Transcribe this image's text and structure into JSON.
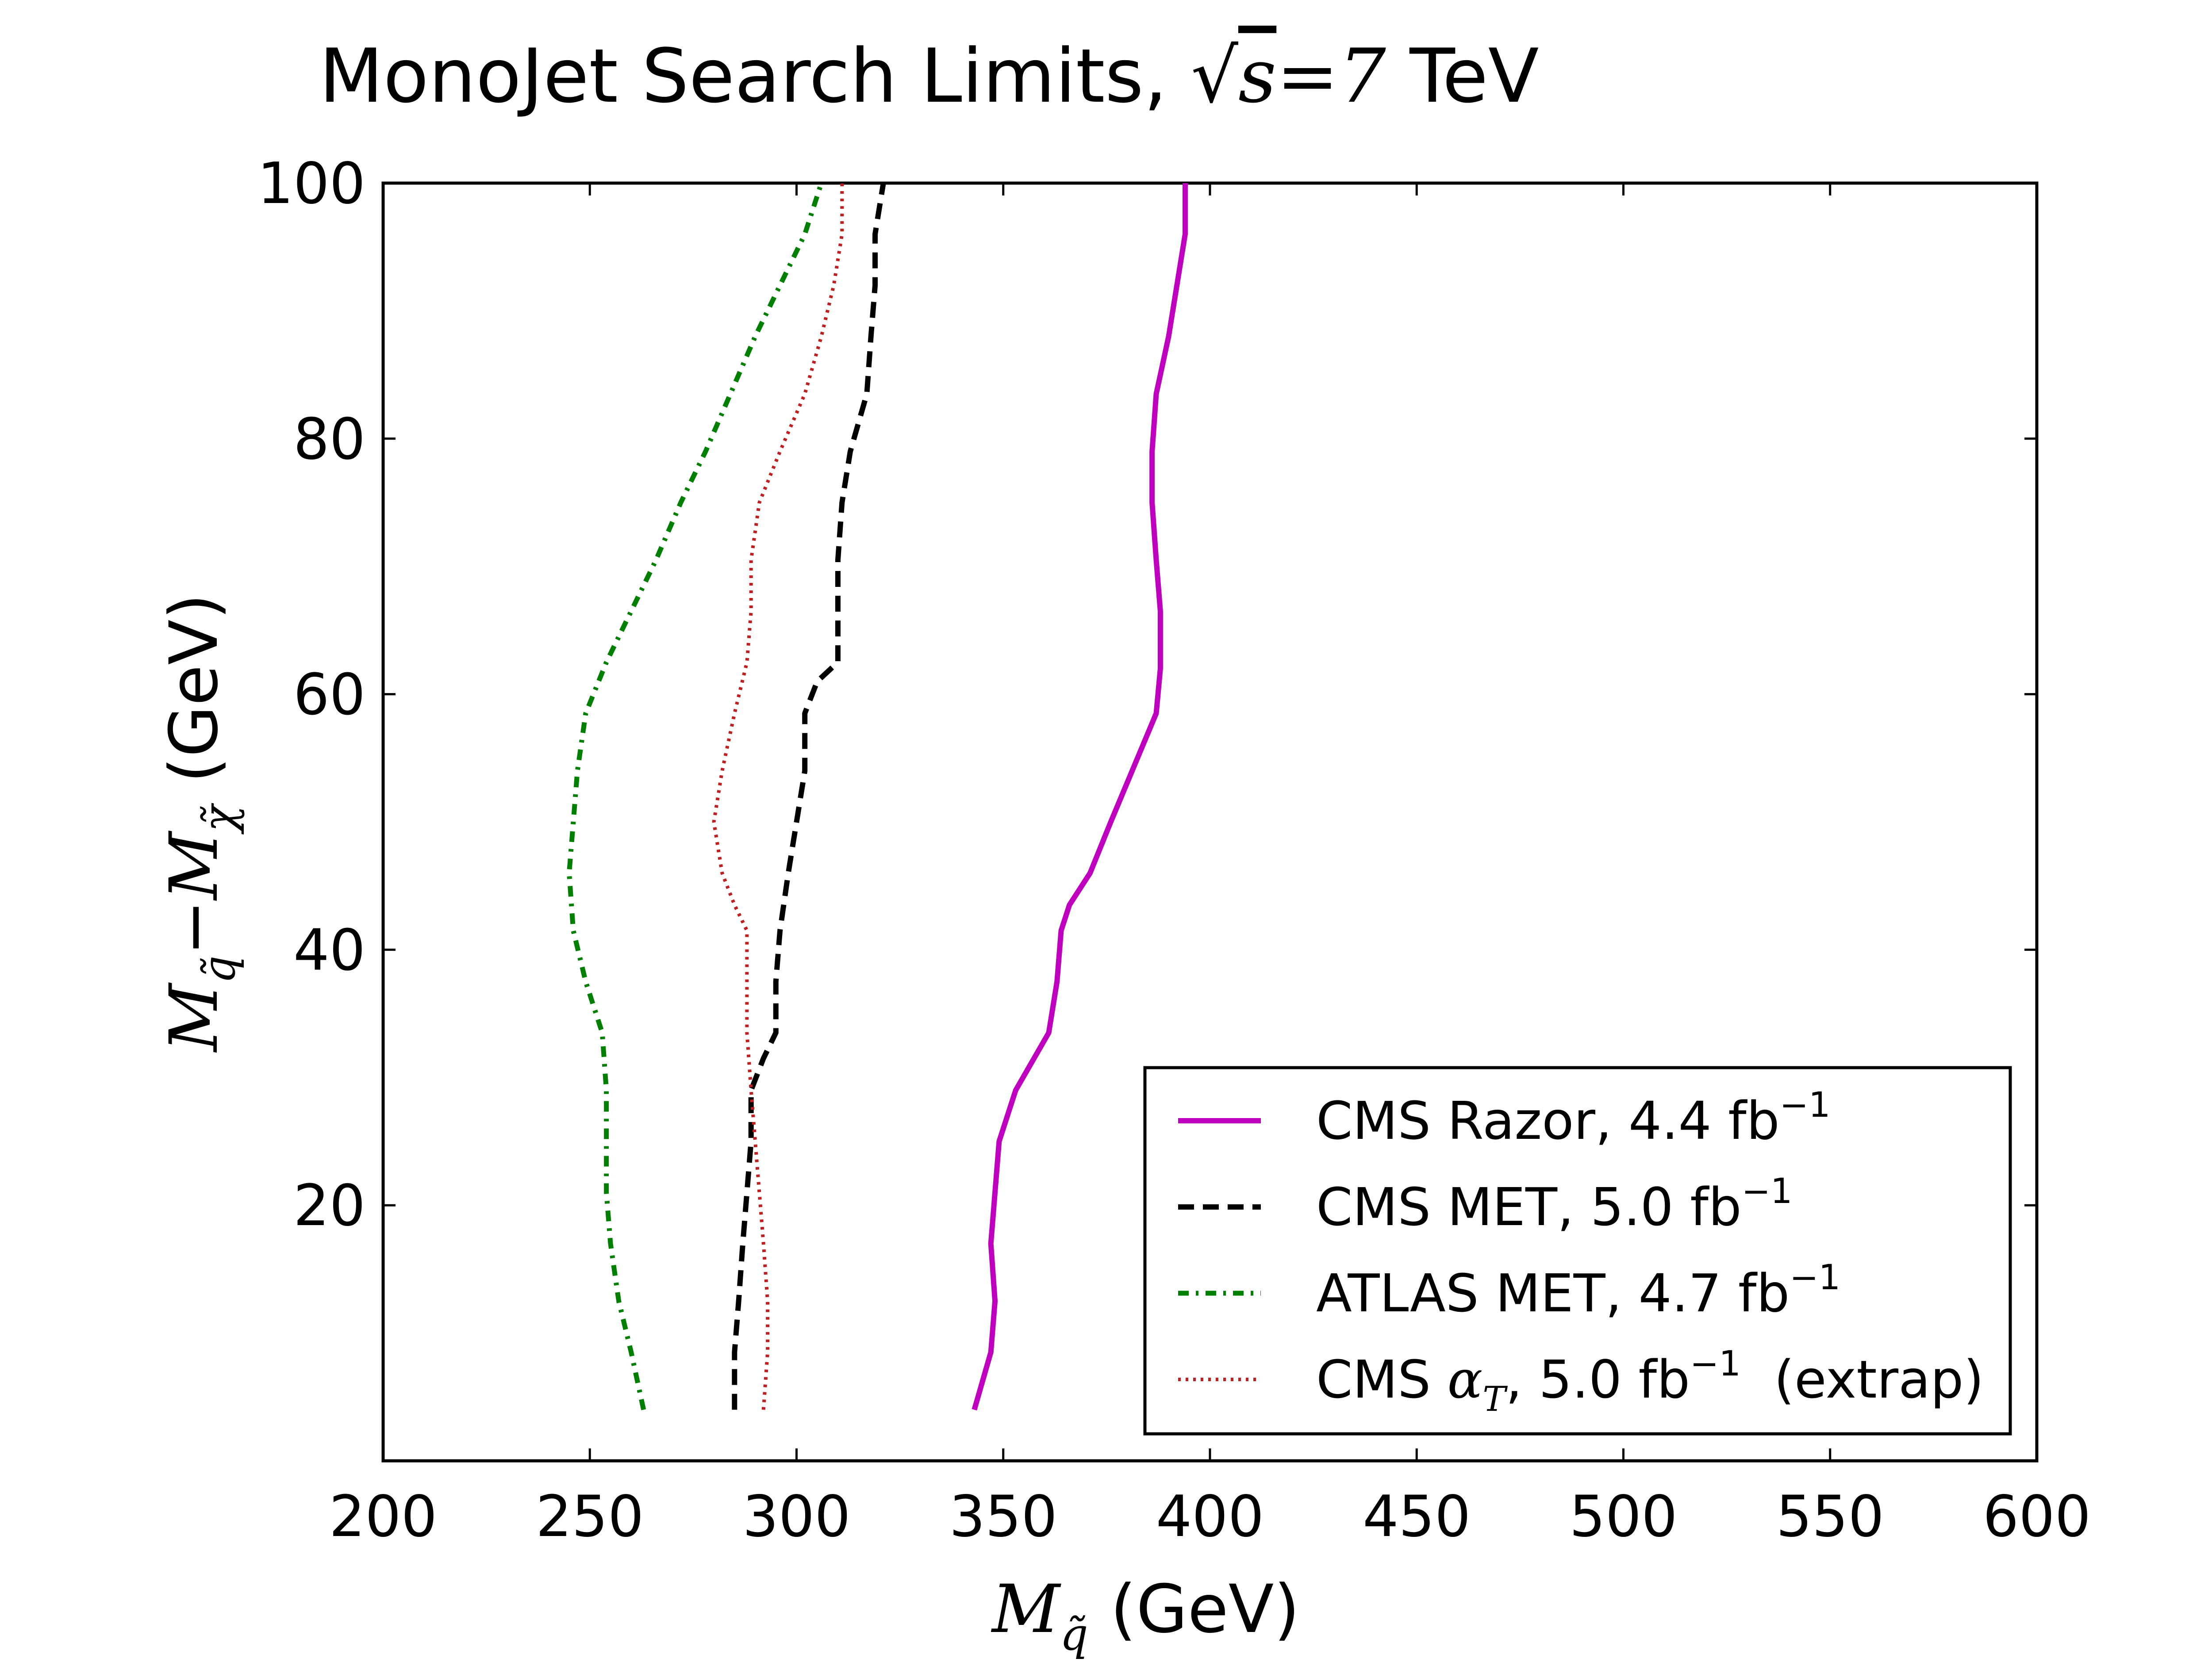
{
  "chart_data": {
    "type": "line",
    "title": {
      "prefix": "MonoJet Search Limits, ",
      "sqrt_symbol": "√",
      "sqrt_arg": "s",
      "equals": "=",
      "value": "7",
      "unit": " TeV"
    },
    "xlabel": {
      "symbol": "M",
      "subscript": "q̃",
      "unit": "(GeV)"
    },
    "ylabel": {
      "symbol1": "M",
      "subscript1": "q̃",
      "minus": "−",
      "symbol2": "M",
      "subscript2": "χ̃",
      "unit": "(GeV)"
    },
    "xlim": [
      200,
      600
    ],
    "ylim": [
      0,
      100
    ],
    "xticks": [
      200,
      250,
      300,
      350,
      400,
      450,
      500,
      550,
      600
    ],
    "yticks": [
      20,
      40,
      60,
      80,
      100
    ],
    "grid": false,
    "legend_position": "lower-right",
    "series": [
      {
        "name": "CMS Razor, 4.4 fb",
        "label_text": "CMS Razor, 4.4 fb",
        "label_sup": "−1",
        "label_extra": "",
        "color": "#bf00bf",
        "style": "solid",
        "points": [
          [
            343,
            4
          ],
          [
            347,
            8.5
          ],
          [
            348,
            12.5
          ],
          [
            347,
            17
          ],
          [
            348,
            21
          ],
          [
            349,
            25
          ],
          [
            353,
            29
          ],
          [
            361,
            33.5
          ],
          [
            363,
            37.5
          ],
          [
            364,
            41.5
          ],
          [
            366,
            43.5
          ],
          [
            371,
            46
          ],
          [
            376,
            50
          ],
          [
            387,
            58.5
          ],
          [
            388,
            62
          ],
          [
            388,
            66.5
          ],
          [
            387,
            70.5
          ],
          [
            386,
            75
          ],
          [
            386,
            79
          ],
          [
            387,
            83.5
          ],
          [
            390,
            88
          ],
          [
            392,
            92
          ],
          [
            394,
            96
          ],
          [
            394,
            100
          ]
        ]
      },
      {
        "name": "CMS MET, 5.0 fb",
        "label_text": "CMS MET, 5.0 fb",
        "label_sup": "−1",
        "label_extra": "",
        "color": "#000000",
        "style": "dashed",
        "points": [
          [
            285,
            4
          ],
          [
            285,
            8.5
          ],
          [
            286,
            12.5
          ],
          [
            287,
            17
          ],
          [
            288,
            21
          ],
          [
            289,
            25
          ],
          [
            289,
            29
          ],
          [
            292,
            31.5
          ],
          [
            295,
            33.5
          ],
          [
            295,
            37.5
          ],
          [
            296,
            41.5
          ],
          [
            298,
            46
          ],
          [
            300,
            50
          ],
          [
            302,
            54
          ],
          [
            302,
            58.5
          ],
          [
            305,
            61
          ],
          [
            310,
            62.5
          ],
          [
            310,
            66.5
          ],
          [
            310,
            70.5
          ],
          [
            311,
            75
          ],
          [
            313,
            79
          ],
          [
            317,
            83.5
          ],
          [
            318,
            88
          ],
          [
            319,
            92
          ],
          [
            319,
            96
          ],
          [
            321,
            100
          ]
        ]
      },
      {
        "name": "ATLAS MET, 4.7 fb",
        "label_text": "ATLAS MET, 4.7 fb",
        "label_sup": "−1",
        "label_extra": "",
        "color": "#007f00",
        "style": "dashdot",
        "points": [
          [
            263,
            4
          ],
          [
            260,
            8.5
          ],
          [
            257,
            12.5
          ],
          [
            255,
            17
          ],
          [
            254,
            21
          ],
          [
            254,
            25
          ],
          [
            254,
            29
          ],
          [
            253,
            33.5
          ],
          [
            249,
            37.5
          ],
          [
            246,
            41.5
          ],
          [
            245,
            46
          ],
          [
            246,
            50
          ],
          [
            247,
            54
          ],
          [
            249,
            58.5
          ],
          [
            254,
            62.5
          ],
          [
            260,
            66.5
          ],
          [
            266,
            70.5
          ],
          [
            272,
            75
          ],
          [
            278,
            79
          ],
          [
            284,
            83.5
          ],
          [
            290,
            88
          ],
          [
            296,
            92
          ],
          [
            302,
            96
          ],
          [
            306,
            100
          ]
        ]
      },
      {
        "name": "CMS α_T, 5.0 fb",
        "label_text": "CMS ",
        "label_alpha": "α",
        "label_alpha_sub": "T",
        "label_after_alpha": ", 5.0 fb",
        "label_sup": "−1",
        "label_extra": "  (extrap)",
        "color": "#bf1f1f",
        "style": "dotted",
        "points": [
          [
            292,
            4
          ],
          [
            293,
            8.5
          ],
          [
            293,
            12.5
          ],
          [
            292,
            17
          ],
          [
            291,
            21
          ],
          [
            290,
            25
          ],
          [
            289,
            29
          ],
          [
            288,
            33.5
          ],
          [
            288,
            37.5
          ],
          [
            288,
            41.5
          ],
          [
            285,
            43.5
          ],
          [
            282,
            46
          ],
          [
            280,
            50
          ],
          [
            282,
            54
          ],
          [
            285,
            58.5
          ],
          [
            288,
            62.5
          ],
          [
            289,
            66.5
          ],
          [
            289,
            70.5
          ],
          [
            291,
            75
          ],
          [
            296,
            79
          ],
          [
            302,
            83.5
          ],
          [
            306,
            88
          ],
          [
            309,
            92
          ],
          [
            311,
            96
          ],
          [
            311,
            100
          ]
        ]
      }
    ]
  }
}
